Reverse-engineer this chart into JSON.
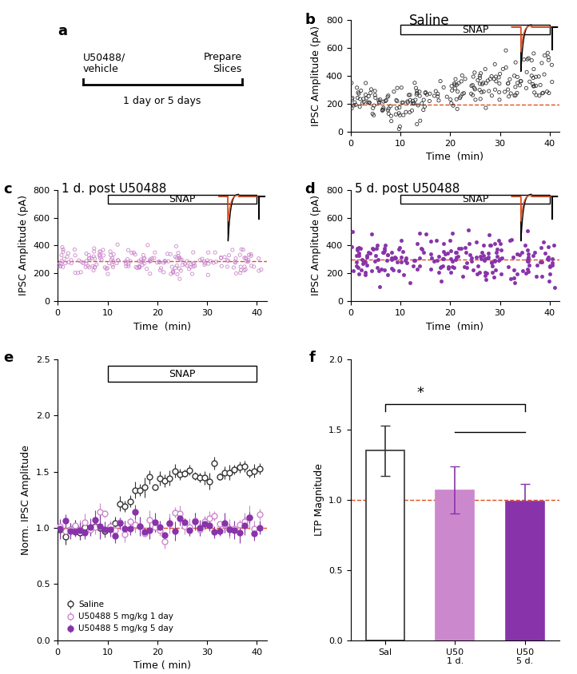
{
  "panel_a": {
    "label": "a",
    "text1": "U50488/\nvehicle",
    "text2": "Prepare\nSlices",
    "timeline_text": "1 day or 5 days"
  },
  "panel_b": {
    "label": "b",
    "title": "Saline",
    "xlabel": "Time  (min)",
    "ylabel": "IPSC Amplitude (pA)",
    "ylim": [
      0,
      800
    ],
    "xlim": [
      0,
      42
    ],
    "dashed_line_y": 195,
    "scatter_color": "#333333"
  },
  "panel_c": {
    "label": "c",
    "title": "1 d. post U50488",
    "xlabel": "Time  (min)",
    "ylabel": "IPSC Amplitude (pA)",
    "ylim": [
      0,
      800
    ],
    "xlim": [
      0,
      42
    ],
    "dashed_line_y": 290,
    "scatter_color": "#cc88cc"
  },
  "panel_d": {
    "label": "d",
    "title": "5 d. post U50488",
    "xlabel": "Time  (min)",
    "ylabel": "IPSC Amplitude (pA)",
    "ylim": [
      0,
      800
    ],
    "xlim": [
      0,
      42
    ],
    "dashed_line_y": 300,
    "scatter_color": "#8833aa"
  },
  "panel_e": {
    "label": "e",
    "xlabel": "Time ( min)",
    "ylabel": "Norm. IPSC Amplitude",
    "ylim": [
      0.0,
      2.5
    ],
    "xlim": [
      0,
      42
    ],
    "dashed_line_y": 1.0,
    "legend_labels": [
      "Saline",
      "U50488 5 mg/kg 1 day",
      "U50488 5 mg/kg 5 day"
    ],
    "legend_colors": [
      "#333333",
      "#cc88cc",
      "#8833aa"
    ]
  },
  "panel_f": {
    "label": "f",
    "ylabel": "LTP Magnitude",
    "ylim": [
      0.0,
      2.0
    ],
    "categories": [
      "Sal",
      "U50\n1 d.",
      "U50\n5 d."
    ],
    "bar_values": [
      1.35,
      1.07,
      0.99
    ],
    "bar_errors": [
      0.18,
      0.17,
      0.12
    ],
    "bar_colors": [
      "#ffffff",
      "#cc88cc",
      "#8833aa"
    ],
    "bar_edge_colors": [
      "#333333",
      "#cc88cc",
      "#8833aa"
    ],
    "err_colors": [
      "#333333",
      "#8833aa",
      "#8833aa"
    ],
    "dashed_line_y": 1.0
  },
  "colors": {
    "dashed_line": "#e05020"
  }
}
